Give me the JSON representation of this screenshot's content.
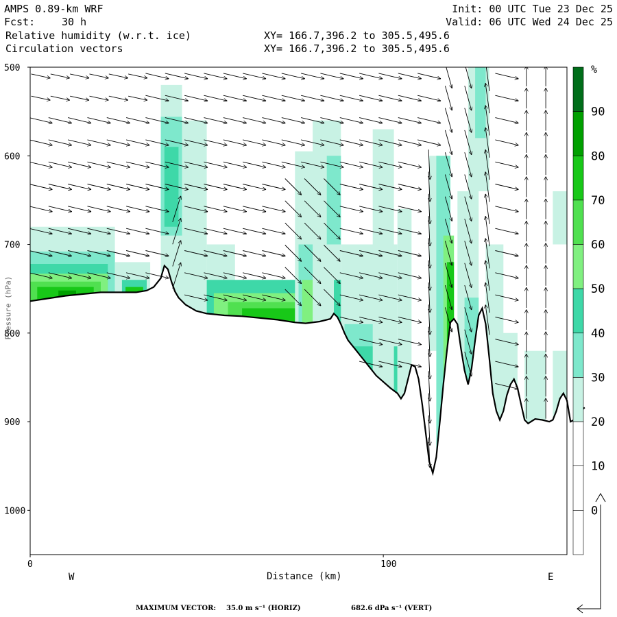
{
  "header": {
    "model": "AMPS 0.89-km WRF",
    "fcst_label": "Fcst:",
    "fcst_value": "30 h",
    "field1": "Relative humidity (w.r.t. ice)",
    "field2": "Circulation vectors",
    "init": "Init: 00 UTC Tue 23 Dec 25",
    "valid": "Valid: 06 UTC Wed 24 Dec 25",
    "xy1": "XY= 166.7,396.2 to 305.5,495.6",
    "xy2": "XY= 166.7,396.2 to 305.5,495.6"
  },
  "footer": {
    "max_vector_label": "MAXIMUM VECTOR:",
    "horiz": "35.0 m s⁻¹ (HORIZ)",
    "vert": "682.6 dPa s⁻¹ (VERT)"
  },
  "colors": {
    "rh_30": "#c8f2e4",
    "rh_40": "#7ee8cc",
    "rh_50": "#3ed8a8",
    "rh_60": "#80f080",
    "rh_70": "#50e050",
    "rh_80": "#18c818",
    "rh_90": "#00a000",
    "rh_95": "#006e1a"
  },
  "chart_data": {
    "type": "cross-section",
    "xlabel": "Distance (km)",
    "ylabel": "Pressure (hPa)",
    "xlim": [
      0,
      152
    ],
    "ylim": [
      1050,
      500
    ],
    "x_ticks": [
      0,
      100
    ],
    "y_ticks": [
      500,
      600,
      700,
      800,
      900,
      1000
    ],
    "x_end_labels": [
      "W",
      "E"
    ],
    "colorbar": {
      "unit": "%",
      "levels": [
        0,
        10,
        20,
        30,
        40,
        50,
        60,
        70,
        80,
        90
      ],
      "colors": [
        "#ffffff",
        "#ffffff",
        "#ffffff",
        "#c8f2e4",
        "#7ee8cc",
        "#3ed8a8",
        "#80f080",
        "#50e050",
        "#18c818",
        "#00a000",
        "#006e1a"
      ]
    },
    "terrain_hpa": [
      [
        0,
        764
      ],
      [
        5,
        761
      ],
      [
        10,
        758
      ],
      [
        15,
        756
      ],
      [
        20,
        754
      ],
      [
        25,
        754
      ],
      [
        30,
        754
      ],
      [
        33,
        752
      ],
      [
        35,
        748
      ],
      [
        37,
        738
      ],
      [
        38,
        724
      ],
      [
        39,
        728
      ],
      [
        40,
        742
      ],
      [
        41,
        753
      ],
      [
        42,
        760
      ],
      [
        44,
        768
      ],
      [
        47,
        775
      ],
      [
        50,
        778
      ],
      [
        55,
        780
      ],
      [
        60,
        781
      ],
      [
        65,
        783
      ],
      [
        70,
        785
      ],
      [
        75,
        788
      ],
      [
        78,
        789
      ],
      [
        82,
        787
      ],
      [
        85,
        784
      ],
      [
        86,
        778
      ],
      [
        87,
        782
      ],
      [
        88,
        790
      ],
      [
        89,
        800
      ],
      [
        90,
        808
      ],
      [
        92,
        818
      ],
      [
        94,
        828
      ],
      [
        96,
        838
      ],
      [
        98,
        848
      ],
      [
        100,
        855
      ],
      [
        102,
        862
      ],
      [
        104,
        868
      ],
      [
        105,
        874
      ],
      [
        106,
        868
      ],
      [
        107,
        852
      ],
      [
        108,
        836
      ],
      [
        109,
        838
      ],
      [
        110,
        852
      ],
      [
        111,
        880
      ],
      [
        112,
        912
      ],
      [
        113,
        945
      ],
      [
        114,
        958
      ],
      [
        115,
        940
      ],
      [
        116,
        900
      ],
      [
        117,
        858
      ],
      [
        118,
        820
      ],
      [
        119,
        788
      ],
      [
        120,
        784
      ],
      [
        121,
        790
      ],
      [
        122,
        818
      ],
      [
        123,
        842
      ],
      [
        124,
        858
      ],
      [
        125,
        840
      ],
      [
        126,
        808
      ],
      [
        127,
        780
      ],
      [
        128,
        772
      ],
      [
        129,
        790
      ],
      [
        130,
        828
      ],
      [
        131,
        868
      ],
      [
        132,
        888
      ],
      [
        133,
        898
      ],
      [
        134,
        888
      ],
      [
        135,
        870
      ],
      [
        136,
        858
      ],
      [
        137,
        852
      ],
      [
        138,
        862
      ],
      [
        139,
        880
      ],
      [
        140,
        898
      ],
      [
        141,
        902
      ],
      [
        143,
        897
      ],
      [
        145,
        898
      ],
      [
        147,
        900
      ],
      [
        148,
        898
      ],
      [
        149,
        888
      ],
      [
        150,
        874
      ],
      [
        151,
        868
      ],
      [
        152,
        876
      ],
      [
        153,
        900
      ],
      [
        154,
        898
      ],
      [
        155,
        898
      ],
      [
        156,
        888
      ],
      [
        157,
        884
      ]
    ],
    "max_vector": {
      "horiz_m_s": 35.0,
      "vert_dPa_s": 682.6
    }
  }
}
